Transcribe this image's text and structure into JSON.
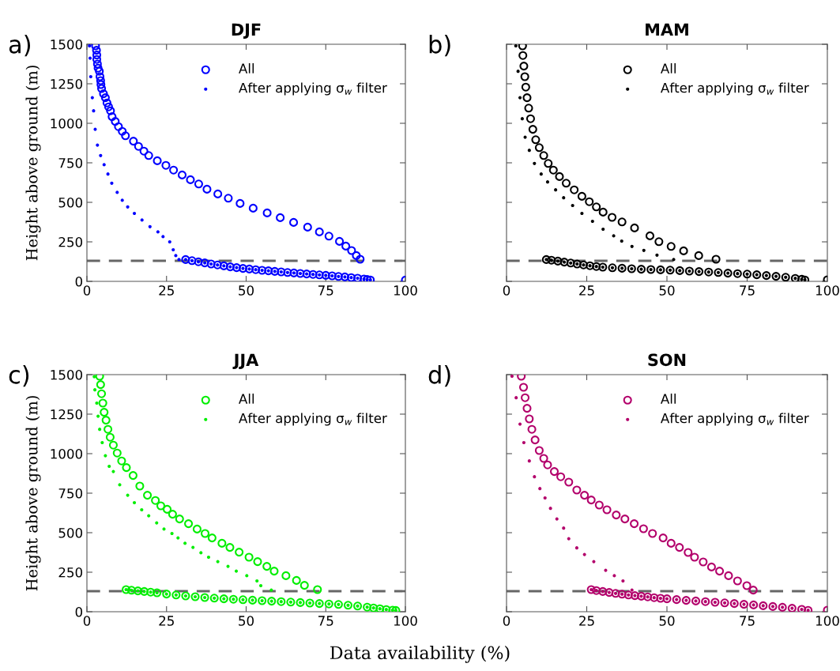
{
  "chart_data": [
    {
      "type": "scatter",
      "title": "DJF",
      "ylabel": "Height above ground (m)",
      "annotations": [
        "a)"
      ],
      "xlim": [
        0,
        100
      ],
      "ylim": [
        0,
        1500
      ],
      "xticks": [
        0,
        25,
        50,
        75,
        100
      ],
      "yticks": [
        0,
        250,
        500,
        750,
        1000,
        1250,
        1500
      ],
      "legend": "top right",
      "marker": "circle",
      "grid": false,
      "ref_lines": [
        {
          "axis": "y",
          "value": 130,
          "color": "#666666",
          "line_style": "dashed"
        }
      ],
      "series": [
        {
          "name": "All",
          "color": "#0000ff",
          "x": [
            2.7,
            3.0,
            3.1,
            3.1,
            3.3,
            3.5,
            3.9,
            4.1,
            4.3,
            4.4,
            4.6,
            5.2,
            5.8,
            6.3,
            6.8,
            7.4,
            7.9,
            8.9,
            9.9,
            11.1,
            12.1,
            14.6,
            16.2,
            17.9,
            19.4,
            22.1,
            24.8,
            27.2,
            29.9,
            32.5,
            35.1,
            37.7,
            41.1,
            44.4,
            48.1,
            52.2,
            56.6,
            60.7,
            64.9,
            69.3,
            73.0,
            76.0,
            79.3,
            81.3,
            83.1,
            84.6,
            85.8,
            31,
            33,
            35,
            37,
            39,
            41,
            43,
            45,
            47,
            49,
            51,
            53,
            55,
            57,
            59,
            61,
            63,
            65,
            67,
            69,
            71,
            73,
            75,
            77,
            79,
            81,
            83,
            85,
            87,
            88,
            89,
            100
          ],
          "values": [
            1490,
            1462,
            1432,
            1404,
            1375,
            1349,
            1329,
            1295,
            1270,
            1245,
            1220,
            1187,
            1162,
            1129,
            1104,
            1079,
            1042,
            1012,
            979,
            949,
            921,
            887,
            854,
            824,
            796,
            763,
            734,
            704,
            673,
            643,
            616,
            583,
            553,
            526,
            493,
            463,
            433,
            403,
            373,
            343,
            313,
            286,
            253,
            223,
            195,
            163,
            140,
            138,
            131,
            124,
            117,
            110,
            104,
            98,
            92,
            87,
            82,
            78,
            74,
            70,
            67,
            63,
            60,
            56,
            53,
            50,
            47,
            44,
            41,
            38,
            35,
            31,
            28,
            24,
            20,
            15,
            12,
            9,
            8
          ]
        },
        {
          "name": "After applying σ$_{w}$ filter",
          "color": "#0000ff",
          "x": [
            0.8,
            1.0,
            1.2,
            1.7,
            2.1,
            2.6,
            3.3,
            4.3,
            5.4,
            6.6,
            7.8,
            9.5,
            11.1,
            12.8,
            14.9,
            17.3,
            19.8,
            22.3,
            23.9,
            26.0,
            27.1,
            27.9,
            28.9,
            31,
            33,
            35,
            37,
            39,
            41,
            43,
            45,
            47,
            49,
            51,
            53,
            55,
            57,
            59,
            61,
            63,
            65,
            67,
            69,
            71,
            73,
            75,
            77,
            79,
            81,
            83,
            85,
            87,
            88,
            89
          ],
          "values": [
            1490,
            1412,
            1295,
            1162,
            1079,
            962,
            862,
            796,
            738,
            679,
            621,
            563,
            513,
            471,
            430,
            388,
            346,
            313,
            283,
            250,
            200,
            163,
            138,
            138,
            131,
            124,
            117,
            110,
            104,
            98,
            92,
            87,
            82,
            78,
            74,
            70,
            67,
            63,
            60,
            56,
            53,
            50,
            47,
            44,
            41,
            38,
            35,
            31,
            28,
            24,
            20,
            15,
            12,
            9
          ]
        }
      ]
    },
    {
      "type": "scatter",
      "title": "MAM",
      "annotations": [
        "b)"
      ],
      "xlim": [
        0,
        100
      ],
      "ylim": [
        0,
        1500
      ],
      "xticks": [
        0,
        25,
        50,
        75,
        100
      ],
      "yticks": [
        0,
        250,
        500,
        750,
        1000,
        1250,
        1500
      ],
      "tick_labels": "x",
      "legend": "top right",
      "marker": "circle",
      "grid": false,
      "ref_lines": [
        {
          "axis": "y",
          "value": 130,
          "color": "#666666",
          "line_style": "dashed"
        }
      ],
      "series": [
        {
          "name": "All",
          "color": "#000000",
          "x": [
            5.0,
            5.1,
            5.4,
            5.7,
            6.0,
            6.4,
            6.9,
            7.5,
            8.2,
            9.1,
            10.2,
            11.6,
            13.0,
            14.6,
            16.5,
            18.6,
            21.1,
            23.5,
            25.8,
            28.0,
            30.1,
            32.9,
            36.0,
            39.9,
            44.7,
            47.5,
            51.3,
            55.2,
            59.9,
            65.3,
            12.4,
            14,
            16,
            18,
            20,
            22,
            24,
            26,
            28,
            30,
            33,
            36,
            39,
            42,
            45,
            48,
            51,
            54,
            57,
            60,
            63,
            66,
            69,
            72,
            75,
            78,
            81,
            84,
            87,
            90,
            92,
            93,
            100
          ],
          "values": [
            1490,
            1429,
            1362,
            1295,
            1229,
            1162,
            1096,
            1029,
            962,
            896,
            846,
            796,
            746,
            704,
            663,
            621,
            579,
            538,
            504,
            471,
            438,
            405,
            376,
            338,
            288,
            251,
            221,
            193,
            163,
            140,
            138,
            134,
            128,
            122,
            116,
            110,
            104,
            99,
            94,
            90,
            86,
            83,
            80,
            77,
            75,
            73,
            71,
            68,
            65,
            62,
            59,
            56,
            52,
            49,
            46,
            42,
            37,
            32,
            26,
            19,
            13,
            9,
            10
          ]
        },
        {
          "name": "After applying σ$_{w}$ filter",
          "color": "#000000",
          "x": [
            2.9,
            3.6,
            4.2,
            4.9,
            5.8,
            7.1,
            8.7,
            10.8,
            12.8,
            15.3,
            17.8,
            20.6,
            23.5,
            26.8,
            30.1,
            33.4,
            35.9,
            39.1,
            42.8,
            46.9,
            52.1,
            12.4,
            14,
            16,
            18,
            20,
            22,
            24,
            26,
            28,
            30,
            33,
            36,
            39,
            42,
            45,
            48,
            51,
            54,
            57,
            60,
            63,
            66,
            69,
            72,
            75,
            78,
            81,
            84,
            87,
            90,
            92,
            93
          ],
          "values": [
            1490,
            1329,
            1162,
            1029,
            912,
            829,
            746,
            679,
            629,
            579,
            529,
            480,
            430,
            380,
            330,
            288,
            255,
            221,
            196,
            166,
            138,
            138,
            134,
            128,
            122,
            116,
            110,
            104,
            99,
            94,
            90,
            86,
            83,
            80,
            77,
            75,
            73,
            71,
            68,
            65,
            62,
            59,
            56,
            52,
            49,
            46,
            42,
            37,
            32,
            26,
            19,
            13,
            9
          ]
        }
      ]
    },
    {
      "type": "scatter",
      "title": "JJA",
      "ylabel": "Height above ground (m)",
      "xlabel": "Data availability (%)",
      "annotations": [
        "c)"
      ],
      "xlim": [
        0,
        100
      ],
      "ylim": [
        0,
        1500
      ],
      "xticks": [
        0,
        25,
        50,
        75,
        100
      ],
      "yticks": [
        0,
        250,
        500,
        750,
        1000,
        1250,
        1500
      ],
      "legend": "top right",
      "marker": "circle",
      "grid": false,
      "ref_lines": [
        {
          "axis": "y",
          "value": 130,
          "color": "#666666",
          "line_style": "dashed"
        }
      ],
      "series": [
        {
          "name": "All",
          "color": "#00ee00",
          "x": [
            4.0,
            4.3,
            4.6,
            5.0,
            5.4,
            6.0,
            6.6,
            7.3,
            8.3,
            9.5,
            10.9,
            12.4,
            14.5,
            16.6,
            19.0,
            21.5,
            23.2,
            25.2,
            26.9,
            29.1,
            31.9,
            34.6,
            37.1,
            39.3,
            42.4,
            44.9,
            47.8,
            50.9,
            53.6,
            56.5,
            58.8,
            62.5,
            65.8,
            68.3,
            72.4,
            12.3,
            14,
            16,
            18,
            20,
            22,
            25,
            28,
            31,
            34,
            37,
            40,
            43,
            46,
            49,
            52,
            55,
            58,
            61,
            64,
            67,
            70,
            73,
            76,
            79,
            82,
            85,
            88,
            90,
            92,
            94,
            96,
            97
          ],
          "values": [
            1490,
            1437,
            1379,
            1320,
            1262,
            1212,
            1154,
            1104,
            1054,
            1004,
            954,
            912,
            862,
            795,
            737,
            704,
            670,
            648,
            617,
            587,
            557,
            523,
            495,
            467,
            433,
            407,
            377,
            345,
            317,
            287,
            257,
            228,
            198,
            167,
            140,
            140,
            136,
            132,
            128,
            124,
            120,
            112,
            106,
            100,
            95,
            90,
            86,
            82,
            79,
            76,
            73,
            70,
            67,
            64,
            61,
            58,
            55,
            52,
            49,
            46,
            41,
            36,
            29,
            24,
            19,
            14,
            10,
            8
          ]
        },
        {
          "name": "After applying σ$_{w}$ filter",
          "color": "#00ee00",
          "x": [
            2.3,
            2.5,
            3.1,
            3.5,
            4.0,
            4.8,
            5.8,
            7.0,
            8.3,
            10.3,
            12.8,
            14.9,
            17.2,
            19.4,
            21.9,
            24.2,
            26.7,
            28.6,
            30.8,
            33.3,
            35.8,
            38.2,
            41.1,
            44.3,
            46.9,
            50.2,
            53.4,
            54.6,
            57.9,
            12.3,
            14,
            16,
            18,
            20,
            22,
            25,
            28,
            31,
            34,
            37,
            40,
            43,
            46,
            49,
            52,
            55,
            58,
            61,
            64,
            67,
            70,
            73,
            76,
            79,
            82,
            85,
            88,
            90,
            92,
            94,
            96,
            97
          ],
          "values": [
            1487,
            1404,
            1320,
            1237,
            1154,
            1070,
            987,
            920,
            887,
            803,
            737,
            690,
            645,
            607,
            562,
            523,
            495,
            467,
            433,
            407,
            373,
            345,
            317,
            287,
            257,
            228,
            195,
            165,
            137,
            140,
            136,
            132,
            128,
            124,
            120,
            112,
            106,
            100,
            95,
            90,
            86,
            82,
            79,
            76,
            73,
            70,
            67,
            64,
            61,
            58,
            55,
            52,
            49,
            46,
            41,
            36,
            29,
            24,
            19,
            14,
            10,
            8
          ]
        }
      ]
    },
    {
      "type": "scatter",
      "title": "SON",
      "annotations": [
        "d)"
      ],
      "xlim": [
        0,
        100
      ],
      "ylim": [
        0,
        1500
      ],
      "xticks": [
        0,
        25,
        50,
        75,
        100
      ],
      "yticks": [
        0,
        250,
        500,
        750,
        1000,
        1250,
        1500
      ],
      "tick_labels": "x",
      "legend": "top right",
      "marker": "circle",
      "grid": false,
      "ref_lines": [
        {
          "axis": "y",
          "value": 130,
          "color": "#666666",
          "line_style": "dashed"
        }
      ],
      "series": [
        {
          "name": "All",
          "color": "#b3006b",
          "x": [
            4.6,
            5.3,
            5.8,
            6.4,
            7.1,
            7.9,
            8.9,
            10.2,
            11.6,
            12.8,
            14.9,
            16.9,
            19.4,
            21.9,
            24.3,
            26.4,
            28.9,
            31.3,
            34.2,
            36.9,
            39.8,
            42.7,
            45.5,
            48.8,
            51.3,
            53.9,
            56.6,
            58.6,
            61.3,
            63.9,
            66.4,
            69.2,
            72.0,
            74.9,
            76.9,
            26.4,
            28,
            30,
            32,
            34,
            36,
            38,
            40,
            42,
            44,
            46,
            48,
            50,
            53,
            56,
            59,
            62,
            65,
            68,
            71,
            74,
            77,
            80,
            83,
            86,
            89,
            92,
            94,
            100
          ],
          "values": [
            1490,
            1420,
            1354,
            1287,
            1220,
            1154,
            1087,
            1020,
            970,
            929,
            887,
            854,
            820,
            770,
            737,
            707,
            675,
            645,
            612,
            587,
            557,
            525,
            495,
            467,
            433,
            407,
            375,
            345,
            315,
            283,
            257,
            228,
            195,
            165,
            137,
            140,
            134,
            128,
            122,
            116,
            111,
            106,
            102,
            98,
            94,
            89,
            85,
            82,
            77,
            72,
            68,
            64,
            60,
            56,
            52,
            47,
            43,
            38,
            33,
            28,
            22,
            15,
            9,
            10
          ]
        },
        {
          "name": "After applying σ$_{w}$ filter",
          "color": "#b3006b",
          "x": [
            1.7,
            3.0,
            4.2,
            5.4,
            7.1,
            8.7,
            10.4,
            12.0,
            13.7,
            15.7,
            17.8,
            19.4,
            21.9,
            24.3,
            27.2,
            30.9,
            33.6,
            36.3,
            39.1,
            26.4,
            28,
            30,
            32,
            34,
            36,
            38,
            40,
            42,
            44,
            46,
            48,
            50,
            53,
            56,
            59,
            62,
            65,
            68,
            71,
            74,
            77,
            80,
            83,
            86,
            89,
            92,
            94
          ],
          "values": [
            1490,
            1354,
            1187,
            1070,
            954,
            854,
            779,
            720,
            654,
            587,
            529,
            462,
            404,
            362,
            317,
            262,
            228,
            195,
            137,
            140,
            134,
            128,
            122,
            116,
            111,
            106,
            102,
            98,
            94,
            89,
            85,
            82,
            77,
            72,
            68,
            64,
            60,
            56,
            52,
            47,
            43,
            38,
            33,
            28,
            22,
            15,
            9
          ]
        }
      ]
    }
  ]
}
